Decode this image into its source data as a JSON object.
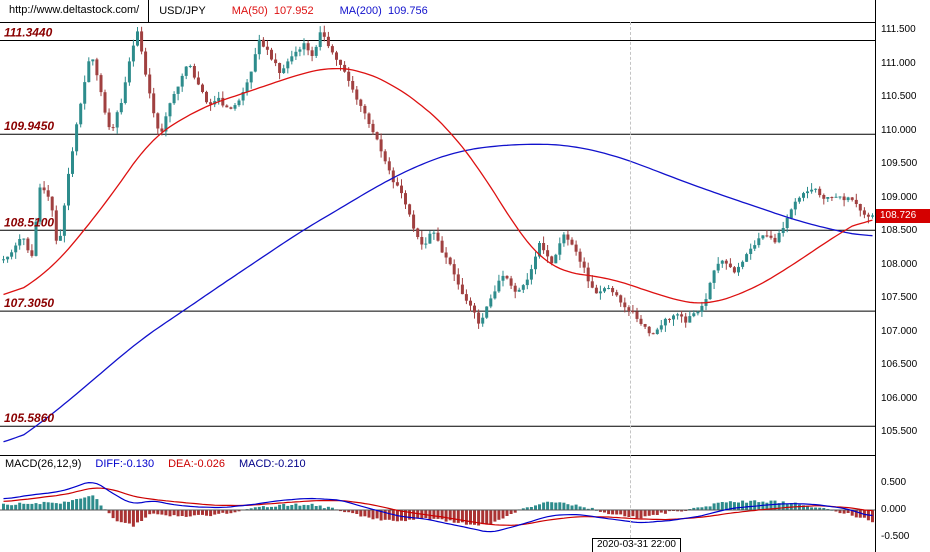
{
  "header": {
    "url": "http://www.deltastock.com/",
    "symbol": "USD/JPY",
    "ma50_label": "MA(50)",
    "ma50_value": "107.952",
    "ma200_label": "MA(200)",
    "ma200_value": "109.756"
  },
  "colors": {
    "bull": "#2d8c8c",
    "bear": "#a04040",
    "ma50": "#dd1111",
    "ma200": "#1111cc",
    "level_label": "#8b0000",
    "level_line": "#000000",
    "badge_bg": "#d40000",
    "badge_text": "#ffffff",
    "diff_text": "#0000cc",
    "dea_text": "#cc0000",
    "macd_text": "#000088",
    "hist_pos": "#2d8c8c",
    "hist_neg": "#aa3333",
    "zero_line": "#555555"
  },
  "chart_data": {
    "type": "candlestick",
    "title": "USD/JPY intraday candlestick chart with MA(50), MA(200), horizontal support/resistance levels and MACD sub-chart",
    "symbol": "USD/JPY",
    "grid": "off",
    "legend_position": "top",
    "y_axis": {
      "side": "right",
      "visible_min": 105.0,
      "visible_max": 111.75,
      "ticks": [
        "111.500",
        "111.000",
        "110.500",
        "110.000",
        "109.500",
        "109.000",
        "108.500",
        "108.000",
        "107.500",
        "107.000",
        "106.500",
        "106.000",
        "105.500"
      ]
    },
    "levels": [
      {
        "label": "111.3440",
        "value": 111.344
      },
      {
        "label": "109.9450",
        "value": 109.945
      },
      {
        "label": "108.5100",
        "value": 108.51
      },
      {
        "label": "107.3050",
        "value": 107.305
      },
      {
        "label": "105.5860",
        "value": 105.586
      }
    ],
    "current_price": {
      "label": "108.726",
      "value": 108.726
    },
    "series": {
      "name": "USD/JPY close price keypoints (t = fraction of visible range, price)",
      "candle_count": 215,
      "close_keypoints": [
        [
          0.006,
          108.1
        ],
        [
          0.021,
          108.45
        ],
        [
          0.032,
          108.05
        ],
        [
          0.043,
          109.25
        ],
        [
          0.055,
          108.9
        ],
        [
          0.063,
          108.15
        ],
        [
          0.074,
          109.3
        ],
        [
          0.086,
          110.2
        ],
        [
          0.101,
          111.2
        ],
        [
          0.112,
          110.55
        ],
        [
          0.123,
          109.95
        ],
        [
          0.135,
          110.4
        ],
        [
          0.146,
          111.1
        ],
        [
          0.154,
          111.5
        ],
        [
          0.163,
          110.9
        ],
        [
          0.174,
          110.15
        ],
        [
          0.181,
          109.95
        ],
        [
          0.192,
          110.4
        ],
        [
          0.203,
          110.75
        ],
        [
          0.213,
          111.0
        ],
        [
          0.224,
          110.7
        ],
        [
          0.235,
          110.35
        ],
        [
          0.247,
          110.5
        ],
        [
          0.258,
          110.3
        ],
        [
          0.272,
          110.45
        ],
        [
          0.283,
          110.8
        ],
        [
          0.295,
          111.35
        ],
        [
          0.306,
          111.15
        ],
        [
          0.318,
          110.85
        ],
        [
          0.331,
          111.1
        ],
        [
          0.345,
          111.3
        ],
        [
          0.357,
          111.1
        ],
        [
          0.366,
          111.5
        ],
        [
          0.379,
          111.15
        ],
        [
          0.391,
          110.9
        ],
        [
          0.402,
          110.6
        ],
        [
          0.414,
          110.3
        ],
        [
          0.425,
          110.0
        ],
        [
          0.437,
          109.6
        ],
        [
          0.448,
          109.25
        ],
        [
          0.459,
          109.05
        ],
        [
          0.471,
          108.6
        ],
        [
          0.482,
          108.25
        ],
        [
          0.494,
          108.5
        ],
        [
          0.505,
          108.2
        ],
        [
          0.517,
          107.9
        ],
        [
          0.528,
          107.55
        ],
        [
          0.54,
          107.3
        ],
        [
          0.549,
          107.1
        ],
        [
          0.562,
          107.55
        ],
        [
          0.576,
          107.85
        ],
        [
          0.59,
          107.55
        ],
        [
          0.603,
          107.8
        ],
        [
          0.617,
          108.3
        ],
        [
          0.631,
          108.05
        ],
        [
          0.645,
          108.45
        ],
        [
          0.658,
          108.25
        ],
        [
          0.672,
          107.8
        ],
        [
          0.683,
          107.55
        ],
        [
          0.695,
          107.7
        ],
        [
          0.709,
          107.45
        ],
        [
          0.722,
          107.3
        ],
        [
          0.736,
          107.1
        ],
        [
          0.747,
          106.95
        ],
        [
          0.759,
          107.15
        ],
        [
          0.773,
          107.25
        ],
        [
          0.786,
          107.15
        ],
        [
          0.798,
          107.3
        ],
        [
          0.809,
          107.5
        ],
        [
          0.818,
          107.95
        ],
        [
          0.83,
          108.05
        ],
        [
          0.841,
          107.9
        ],
        [
          0.853,
          108.1
        ],
        [
          0.864,
          108.3
        ],
        [
          0.875,
          108.45
        ],
        [
          0.887,
          108.35
        ],
        [
          0.898,
          108.55
        ],
        [
          0.91,
          108.9
        ],
        [
          0.921,
          109.05
        ],
        [
          0.933,
          109.15
        ],
        [
          0.944,
          108.95
        ],
        [
          0.955,
          109.05
        ],
        [
          0.967,
          108.95
        ],
        [
          0.978,
          109.0
        ],
        [
          0.985,
          108.85
        ],
        [
          0.994,
          108.73
        ]
      ]
    },
    "ma50": {
      "label": "MA(50)",
      "value": 107.952,
      "keypoints": [
        [
          0,
          107.45
        ],
        [
          0.057,
          107.95
        ],
        [
          0.114,
          108.85
        ],
        [
          0.171,
          109.9
        ],
        [
          0.229,
          110.35
        ],
        [
          0.286,
          110.6
        ],
        [
          0.343,
          110.85
        ],
        [
          0.377,
          110.95
        ],
        [
          0.411,
          110.9
        ],
        [
          0.446,
          110.7
        ],
        [
          0.48,
          110.4
        ],
        [
          0.514,
          110.0
        ],
        [
          0.549,
          109.4
        ],
        [
          0.571,
          108.95
        ],
        [
          0.594,
          108.45
        ],
        [
          0.617,
          108.1
        ],
        [
          0.64,
          107.9
        ],
        [
          0.663,
          107.85
        ],
        [
          0.697,
          107.8
        ],
        [
          0.731,
          107.65
        ],
        [
          0.766,
          107.5
        ],
        [
          0.789,
          107.42
        ],
        [
          0.811,
          107.4
        ],
        [
          0.857,
          107.6
        ],
        [
          0.891,
          107.85
        ],
        [
          0.926,
          108.15
        ],
        [
          0.96,
          108.45
        ],
        [
          1,
          108.75
        ]
      ]
    },
    "ma200": {
      "label": "MA(200)",
      "value": 109.756,
      "keypoints": [
        [
          0,
          105.25
        ],
        [
          0.034,
          105.55
        ],
        [
          0.069,
          105.9
        ],
        [
          0.114,
          106.4
        ],
        [
          0.16,
          106.9
        ],
        [
          0.206,
          107.3
        ],
        [
          0.251,
          107.7
        ],
        [
          0.297,
          108.1
        ],
        [
          0.343,
          108.5
        ],
        [
          0.389,
          108.85
        ],
        [
          0.434,
          109.2
        ],
        [
          0.48,
          109.5
        ],
        [
          0.526,
          109.7
        ],
        [
          0.571,
          109.78
        ],
        [
          0.617,
          109.8
        ],
        [
          0.651,
          109.78
        ],
        [
          0.697,
          109.65
        ],
        [
          0.731,
          109.5
        ],
        [
          0.766,
          109.32
        ],
        [
          0.823,
          109.05
        ],
        [
          0.869,
          108.85
        ],
        [
          0.914,
          108.65
        ],
        [
          0.96,
          108.5
        ],
        [
          1,
          108.4
        ]
      ]
    },
    "macd": {
      "params_label": "MACD(26,12,9)",
      "diff_label": "DIFF:-0.130",
      "dea_label": "DEA:-0.026",
      "macd_label": "MACD:-0.210",
      "diff": -0.13,
      "dea": -0.026,
      "macd": -0.21,
      "ticks": [
        "0.500",
        "0.000",
        "-0.500"
      ],
      "diff_keypoints": [
        [
          0,
          0.2
        ],
        [
          0.034,
          0.28
        ],
        [
          0.069,
          0.35
        ],
        [
          0.103,
          0.55
        ],
        [
          0.126,
          0.3
        ],
        [
          0.149,
          0.1
        ],
        [
          0.171,
          0.18
        ],
        [
          0.194,
          0.1
        ],
        [
          0.217,
          0.06
        ],
        [
          0.251,
          0.04
        ],
        [
          0.286,
          0.1
        ],
        [
          0.32,
          0.18
        ],
        [
          0.354,
          0.22
        ],
        [
          0.389,
          0.18
        ],
        [
          0.423,
          0.02
        ],
        [
          0.457,
          -0.12
        ],
        [
          0.491,
          -0.18
        ],
        [
          0.526,
          -0.3
        ],
        [
          0.56,
          -0.42
        ],
        [
          0.594,
          -0.28
        ],
        [
          0.629,
          -0.1
        ],
        [
          0.663,
          -0.08
        ],
        [
          0.697,
          -0.16
        ],
        [
          0.731,
          -0.24
        ],
        [
          0.766,
          -0.2
        ],
        [
          0.8,
          -0.12
        ],
        [
          0.834,
          0.02
        ],
        [
          0.869,
          0.08
        ],
        [
          0.903,
          0.12
        ],
        [
          0.937,
          0.1
        ],
        [
          0.971,
          0.02
        ],
        [
          1,
          -0.13
        ]
      ],
      "dea_keypoints": [
        [
          0,
          0.15
        ],
        [
          0.034,
          0.22
        ],
        [
          0.069,
          0.28
        ],
        [
          0.103,
          0.42
        ],
        [
          0.126,
          0.38
        ],
        [
          0.149,
          0.25
        ],
        [
          0.171,
          0.2
        ],
        [
          0.194,
          0.16
        ],
        [
          0.217,
          0.12
        ],
        [
          0.251,
          0.08
        ],
        [
          0.286,
          0.09
        ],
        [
          0.32,
          0.13
        ],
        [
          0.354,
          0.17
        ],
        [
          0.389,
          0.18
        ],
        [
          0.423,
          0.1
        ],
        [
          0.457,
          -0.02
        ],
        [
          0.491,
          -0.1
        ],
        [
          0.526,
          -0.18
        ],
        [
          0.56,
          -0.28
        ],
        [
          0.594,
          -0.28
        ],
        [
          0.629,
          -0.18
        ],
        [
          0.663,
          -0.12
        ],
        [
          0.697,
          -0.13
        ],
        [
          0.731,
          -0.17
        ],
        [
          0.766,
          -0.18
        ],
        [
          0.8,
          -0.14
        ],
        [
          0.834,
          -0.06
        ],
        [
          0.869,
          0.0
        ],
        [
          0.903,
          0.05
        ],
        [
          0.937,
          0.08
        ],
        [
          0.971,
          0.05
        ],
        [
          1,
          -0.026
        ]
      ]
    },
    "crosshair_time": "2020-03-31 22:00"
  }
}
